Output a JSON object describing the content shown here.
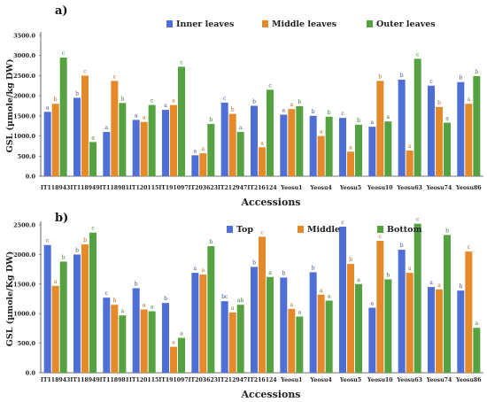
{
  "colors": {
    "blue": "#4f6ed6",
    "orange": "#e58a2b",
    "green": "#54a340"
  },
  "chart_data": [
    {
      "type": "bar",
      "panel_label": "a)",
      "title": "",
      "xlabel": "Accessions",
      "ylabel": "GSL (µmole/kg DW)",
      "ylim": [
        0,
        3500
      ],
      "yticks": [
        "0.0",
        "500.0",
        "1000.0",
        "1500.0",
        "2000.0",
        "2500.0",
        "3000.0",
        "3500.0"
      ],
      "grid": false,
      "legend_position": "top",
      "categories": [
        "IT118943",
        "IT118949",
        "IT118981",
        "IT120115",
        "IT191097",
        "IT203623",
        "IT212947",
        "IT216124",
        "Yeosu1",
        "Yeosu4",
        "Yeosu5",
        "Yeosu10",
        "Yeosu63",
        "Yeosu74",
        "Yeosu86"
      ],
      "series": [
        {
          "name": "Inner leaves",
          "values": [
            1600,
            1950,
            1100,
            1400,
            1650,
            520,
            1830,
            1750,
            1530,
            1500,
            1450,
            1230,
            2400,
            2250,
            2340
          ],
          "letters": [
            "a",
            "b",
            "a",
            "a",
            "a",
            "a",
            "c",
            "b",
            "a",
            "b",
            "c",
            "a",
            "b",
            "c",
            "b"
          ]
        },
        {
          "name": "Middle leaves",
          "values": [
            1800,
            2500,
            2370,
            1350,
            1770,
            570,
            1550,
            720,
            1670,
            1000,
            610,
            2370,
            640,
            1720,
            1800
          ],
          "letters": [
            "b",
            "c",
            "c",
            "a",
            "a",
            "a",
            "b",
            "a",
            "a",
            "a",
            "a",
            "b",
            "a",
            "b",
            "a"
          ]
        },
        {
          "name": "Outer leaves",
          "values": [
            2950,
            850,
            1820,
            1770,
            2720,
            1300,
            1100,
            2150,
            1740,
            1480,
            1280,
            1360,
            2920,
            1330,
            2490
          ],
          "letters": [
            "c",
            "a",
            "b",
            "c",
            "c",
            "b",
            "a",
            "c",
            "b",
            "b",
            "b",
            "a",
            "c",
            "a",
            "b"
          ]
        }
      ]
    },
    {
      "type": "bar",
      "panel_label": "b)",
      "title": "",
      "xlabel": "Accessions",
      "ylabel": "GSL (µmole/Kg DW)",
      "ylim": [
        0,
        2500
      ],
      "yticks": [
        "0.0",
        "500.0",
        "1000.0",
        "1500.0",
        "2000.0",
        "2500.0"
      ],
      "grid": false,
      "legend_position": "top",
      "categories": [
        "IT118943",
        "IT118949",
        "IT118981",
        "IT120115",
        "IT191097",
        "IT203623",
        "IT212947",
        "IT216124",
        "Yeosu1",
        "Yeosu4",
        "Yeosu5",
        "Yeosu10",
        "Yeosu63",
        "Yeosu74",
        "Yeosu86"
      ],
      "series": [
        {
          "name": "Top",
          "values": [
            2160,
            2000,
            1270,
            1430,
            1180,
            1690,
            1210,
            1790,
            1610,
            1700,
            2470,
            1100,
            2080,
            1450,
            1390
          ],
          "letters": [
            "c",
            "b",
            "c",
            "b",
            "b",
            "a",
            "bc",
            "b",
            "b",
            "b",
            "c",
            "a",
            "b",
            "a",
            "b"
          ]
        },
        {
          "name": "Middle",
          "values": [
            1470,
            2170,
            1150,
            1070,
            440,
            1660,
            1020,
            2300,
            1080,
            1320,
            1840,
            2230,
            1690,
            1410,
            2050
          ],
          "letters": [
            "a",
            "b",
            "b",
            "a",
            "a",
            "a",
            "a",
            "c",
            "a",
            "a",
            "b",
            "c",
            "a",
            "a",
            "c"
          ]
        },
        {
          "name": "Bottom",
          "values": [
            1880,
            2370,
            970,
            1040,
            590,
            2140,
            1150,
            1620,
            950,
            1220,
            1500,
            1580,
            2520,
            2330,
            760
          ],
          "letters": [
            "b",
            "c",
            "a",
            "a",
            "a",
            "b",
            "ab",
            "a",
            "a",
            "a",
            "a",
            "b",
            "c",
            "b",
            "a"
          ]
        }
      ]
    }
  ]
}
